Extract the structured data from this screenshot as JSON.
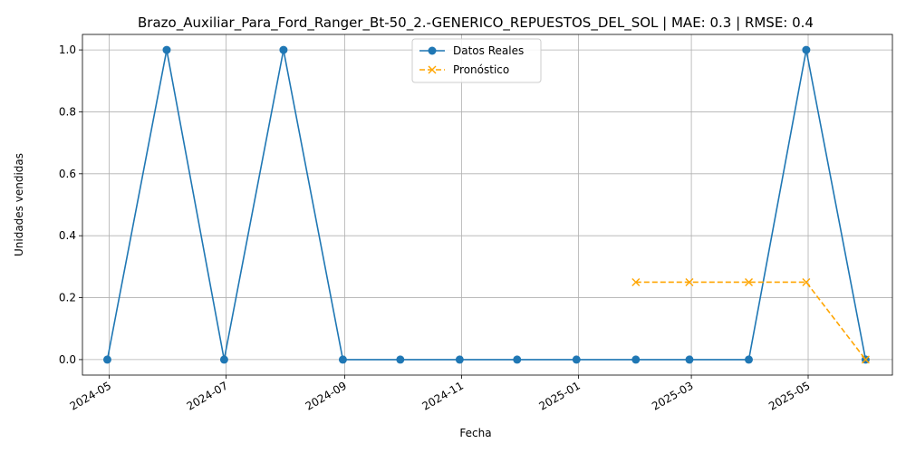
{
  "chart_data": {
    "type": "line",
    "title": "Brazo_Auxiliar_Para_Ford_Ranger_Bt-50_2.-GENERICO_REPUESTOS_DEL_SOL | MAE: 0.3 | RMSE: 0.4",
    "xlabel": "Fecha",
    "ylabel": "Unidades vendidas",
    "x_axis": "date",
    "xlim": [
      "2024-04-17",
      "2025-06-14"
    ],
    "ylim": [
      -0.05,
      1.05
    ],
    "x_ticks": [
      "2024-05",
      "2024-07",
      "2024-09",
      "2024-11",
      "2025-01",
      "2025-03",
      "2025-05"
    ],
    "x_tick_dates": [
      "2024-05-01",
      "2024-07-01",
      "2024-09-01",
      "2024-11-01",
      "2025-01-01",
      "2025-03-01",
      "2025-05-01"
    ],
    "y_ticks": [
      0.0,
      0.2,
      0.4,
      0.6,
      0.8,
      1.0
    ],
    "grid": true,
    "legend_position": "top-center",
    "series": [
      {
        "name": "Datos Reales",
        "color": "#1f77b4",
        "style": "solid",
        "marker": "circle",
        "x": [
          "2024-04-30",
          "2024-05-31",
          "2024-06-30",
          "2024-07-31",
          "2024-08-31",
          "2024-09-30",
          "2024-10-31",
          "2024-11-30",
          "2024-12-31",
          "2025-01-31",
          "2025-02-28",
          "2025-03-31",
          "2025-04-30",
          "2025-05-31"
        ],
        "y": [
          0,
          1,
          0,
          1,
          0,
          0,
          0,
          0,
          0,
          0,
          0,
          0,
          1,
          0
        ]
      },
      {
        "name": "Pronóstico",
        "color": "#ffa500",
        "style": "dashed",
        "marker": "x",
        "x": [
          "2025-01-31",
          "2025-02-28",
          "2025-03-31",
          "2025-04-30",
          "2025-05-31"
        ],
        "y": [
          0.25,
          0.25,
          0.25,
          0.25,
          0
        ]
      }
    ]
  }
}
